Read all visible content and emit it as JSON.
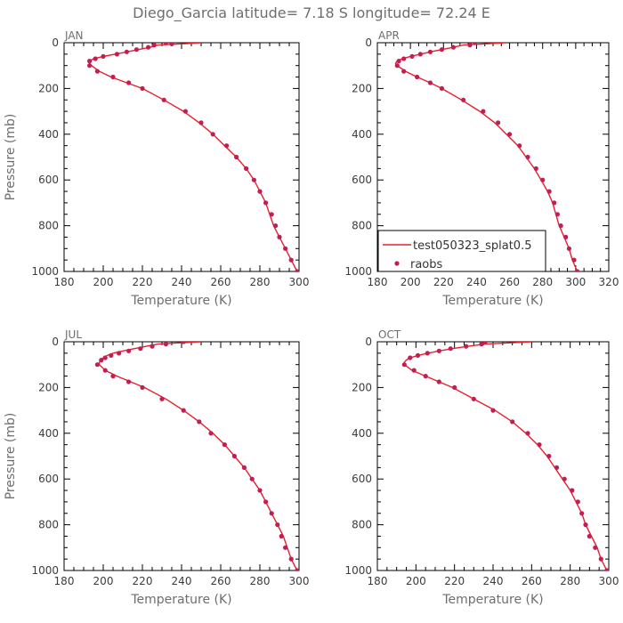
{
  "figure_title": "Diego_Garcia   latitude= 7.18 S longitude= 72.24 E",
  "legend": {
    "model_label": "test050323_splat0.5",
    "obs_label": "raobs",
    "model_color": "#e8202a",
    "obs_color": "#c21e54"
  },
  "chart_data": [
    {
      "type": "line",
      "title": "JAN",
      "xlabel": "Temperature (K)",
      "ylabel": "Pressure (mb)",
      "xlim": [
        180,
        300
      ],
      "ylim": [
        1000,
        0
      ],
      "xticks": [
        180,
        200,
        220,
        240,
        260,
        280,
        300
      ],
      "yticks": [
        0,
        200,
        400,
        600,
        800,
        1000
      ],
      "series": [
        {
          "name": "test050323_splat0.5",
          "points": [
            [
              250,
              0
            ],
            [
              240,
              5
            ],
            [
              228,
              10
            ],
            [
              224,
              20
            ],
            [
              218,
              30
            ],
            [
              212,
              40
            ],
            [
              206,
              50
            ],
            [
              200,
              60
            ],
            [
              195,
              70
            ],
            [
              193,
              80
            ],
            [
              193,
              90
            ],
            [
              194,
              100
            ],
            [
              198,
              125
            ],
            [
              204,
              150
            ],
            [
              212,
              175
            ],
            [
              220,
              200
            ],
            [
              231,
              250
            ],
            [
              241,
              300
            ],
            [
              249,
              350
            ],
            [
              256,
              400
            ],
            [
              262,
              450
            ],
            [
              268,
              500
            ],
            [
              273,
              550
            ],
            [
              277,
              600
            ],
            [
              280,
              650
            ],
            [
              283,
              700
            ],
            [
              285,
              750
            ],
            [
              287,
              800
            ],
            [
              290,
              850
            ],
            [
              293,
              900
            ],
            [
              296,
              950
            ],
            [
              299,
              1000
            ]
          ]
        },
        {
          "name": "raobs",
          "points": [
            [
              232,
              0
            ],
            [
              235,
              5
            ],
            [
              226,
              10
            ],
            [
              223,
              20
            ],
            [
              217,
              30
            ],
            [
              212,
              40
            ],
            [
              207,
              50
            ],
            [
              200,
              60
            ],
            [
              196,
              70
            ],
            [
              193,
              80
            ],
            [
              193,
              100
            ],
            [
              197,
              125
            ],
            [
              205,
              150
            ],
            [
              213,
              175
            ],
            [
              220,
              200
            ],
            [
              231,
              250
            ],
            [
              242,
              300
            ],
            [
              250,
              350
            ],
            [
              256,
              400
            ],
            [
              263,
              450
            ],
            [
              268,
              500
            ],
            [
              273,
              550
            ],
            [
              277,
              600
            ],
            [
              280,
              650
            ],
            [
              283,
              700
            ],
            [
              286,
              750
            ],
            [
              288,
              800
            ],
            [
              290,
              850
            ],
            [
              293,
              900
            ],
            [
              296,
              950
            ],
            [
              299,
              1000
            ]
          ]
        }
      ]
    },
    {
      "type": "line",
      "title": "APR",
      "xlabel": "Temperature (K)",
      "ylabel": "",
      "xlim": [
        180,
        320
      ],
      "ylim": [
        1000,
        0
      ],
      "xticks": [
        180,
        200,
        220,
        240,
        260,
        280,
        300,
        320
      ],
      "yticks": [
        0,
        200,
        400,
        600,
        800,
        1000
      ],
      "series": [
        {
          "name": "test050323_splat0.5",
          "points": [
            [
              257,
              0
            ],
            [
              245,
              5
            ],
            [
              232,
              10
            ],
            [
              226,
              20
            ],
            [
              219,
              30
            ],
            [
              212,
              40
            ],
            [
              206,
              50
            ],
            [
              200,
              60
            ],
            [
              195,
              70
            ],
            [
              192,
              80
            ],
            [
              191,
              90
            ],
            [
              192,
              100
            ],
            [
              197,
              125
            ],
            [
              204,
              150
            ],
            [
              212,
              175
            ],
            [
              219,
              200
            ],
            [
              231,
              250
            ],
            [
              242,
              300
            ],
            [
              251,
              350
            ],
            [
              258,
              400
            ],
            [
              265,
              450
            ],
            [
              270,
              500
            ],
            [
              275,
              550
            ],
            [
              279,
              600
            ],
            [
              283,
              650
            ],
            [
              286,
              700
            ],
            [
              288,
              750
            ],
            [
              290,
              800
            ],
            [
              293,
              850
            ],
            [
              296,
              900
            ],
            [
              298,
              950
            ],
            [
              301,
              1000
            ]
          ]
        },
        {
          "name": "raobs",
          "points": [
            [
              239,
              0
            ],
            [
              236,
              10
            ],
            [
              226,
              20
            ],
            [
              219,
              30
            ],
            [
              212,
              40
            ],
            [
              206,
              50
            ],
            [
              201,
              60
            ],
            [
              196,
              70
            ],
            [
              193,
              80
            ],
            [
              192,
              100
            ],
            [
              196,
              125
            ],
            [
              204,
              150
            ],
            [
              212,
              175
            ],
            [
              219,
              200
            ],
            [
              232,
              250
            ],
            [
              244,
              300
            ],
            [
              253,
              350
            ],
            [
              260,
              400
            ],
            [
              266,
              450
            ],
            [
              271,
              500
            ],
            [
              276,
              550
            ],
            [
              280,
              600
            ],
            [
              284,
              650
            ],
            [
              287,
              700
            ],
            [
              289,
              750
            ],
            [
              291,
              800
            ],
            [
              294,
              850
            ],
            [
              296,
              900
            ],
            [
              299,
              950
            ],
            [
              301,
              1000
            ]
          ]
        }
      ]
    },
    {
      "type": "line",
      "title": "JUL",
      "xlabel": "Temperature (K)",
      "ylabel": "Pressure (mb)",
      "xlim": [
        180,
        300
      ],
      "ylim": [
        1000,
        0
      ],
      "xticks": [
        180,
        200,
        220,
        240,
        260,
        280,
        300
      ],
      "yticks": [
        0,
        200,
        400,
        600,
        800,
        1000
      ],
      "series": [
        {
          "name": "test050323_splat0.5",
          "points": [
            [
              250,
              0
            ],
            [
              238,
              5
            ],
            [
              228,
              10
            ],
            [
              222,
              20
            ],
            [
              216,
              30
            ],
            [
              210,
              40
            ],
            [
              205,
              50
            ],
            [
              202,
              60
            ],
            [
              200,
              70
            ],
            [
              199,
              80
            ],
            [
              198,
              90
            ],
            [
              198,
              100
            ],
            [
              201,
              125
            ],
            [
              207,
              150
            ],
            [
              214,
              175
            ],
            [
              221,
              200
            ],
            [
              232,
              250
            ],
            [
              241,
              300
            ],
            [
              249,
              350
            ],
            [
              256,
              400
            ],
            [
              262,
              450
            ],
            [
              267,
              500
            ],
            [
              272,
              550
            ],
            [
              276,
              600
            ],
            [
              280,
              650
            ],
            [
              283,
              700
            ],
            [
              286,
              750
            ],
            [
              289,
              800
            ],
            [
              292,
              850
            ],
            [
              294,
              900
            ],
            [
              296,
              950
            ],
            [
              299,
              1000
            ]
          ]
        },
        {
          "name": "raobs",
          "points": [
            [
              241,
              0
            ],
            [
              232,
              10
            ],
            [
              225,
              20
            ],
            [
              219,
              30
            ],
            [
              213,
              40
            ],
            [
              208,
              50
            ],
            [
              204,
              60
            ],
            [
              201,
              70
            ],
            [
              199,
              80
            ],
            [
              197,
              100
            ],
            [
              201,
              125
            ],
            [
              205,
              150
            ],
            [
              213,
              175
            ],
            [
              220,
              200
            ],
            [
              230,
              250
            ],
            [
              241,
              300
            ],
            [
              249,
              350
            ],
            [
              255,
              400
            ],
            [
              262,
              450
            ],
            [
              267,
              500
            ],
            [
              272,
              550
            ],
            [
              276,
              600
            ],
            [
              280,
              650
            ],
            [
              283,
              700
            ],
            [
              286,
              750
            ],
            [
              289,
              800
            ],
            [
              291,
              850
            ],
            [
              293,
              900
            ],
            [
              296,
              950
            ],
            [
              299,
              1000
            ]
          ]
        }
      ]
    },
    {
      "type": "line",
      "title": "OCT",
      "xlabel": "Temperature (K)",
      "ylabel": "",
      "xlim": [
        180,
        300
      ],
      "ylim": [
        1000,
        0
      ],
      "xticks": [
        180,
        200,
        220,
        240,
        260,
        280,
        300
      ],
      "yticks": [
        0,
        200,
        400,
        600,
        800,
        1000
      ],
      "series": [
        {
          "name": "test050323_splat0.5",
          "points": [
            [
              260,
              0
            ],
            [
              248,
              5
            ],
            [
              236,
              10
            ],
            [
              227,
              20
            ],
            [
              219,
              30
            ],
            [
              212,
              40
            ],
            [
              206,
              50
            ],
            [
              201,
              60
            ],
            [
              197,
              70
            ],
            [
              195,
              80
            ],
            [
              194,
              90
            ],
            [
              194,
              100
            ],
            [
              198,
              125
            ],
            [
              205,
              150
            ],
            [
              212,
              175
            ],
            [
              219,
              200
            ],
            [
              230,
              250
            ],
            [
              241,
              300
            ],
            [
              250,
              350
            ],
            [
              257,
              400
            ],
            [
              263,
              450
            ],
            [
              268,
              500
            ],
            [
              272,
              550
            ],
            [
              276,
              600
            ],
            [
              280,
              650
            ],
            [
              283,
              700
            ],
            [
              286,
              750
            ],
            [
              288,
              800
            ],
            [
              291,
              850
            ],
            [
              294,
              900
            ],
            [
              296,
              950
            ],
            [
              299,
              1000
            ]
          ]
        },
        {
          "name": "raobs",
          "points": [
            [
              236,
              0
            ],
            [
              234,
              10
            ],
            [
              226,
              20
            ],
            [
              218,
              30
            ],
            [
              212,
              40
            ],
            [
              206,
              50
            ],
            [
              201,
              60
            ],
            [
              197,
              70
            ],
            [
              194,
              100
            ],
            [
              199,
              125
            ],
            [
              205,
              150
            ],
            [
              212,
              175
            ],
            [
              220,
              200
            ],
            [
              230,
              250
            ],
            [
              240,
              300
            ],
            [
              250,
              350
            ],
            [
              258,
              400
            ],
            [
              264,
              450
            ],
            [
              269,
              500
            ],
            [
              273,
              550
            ],
            [
              277,
              600
            ],
            [
              281,
              650
            ],
            [
              284,
              700
            ],
            [
              286,
              750
            ],
            [
              288,
              800
            ],
            [
              290,
              850
            ],
            [
              293,
              900
            ],
            [
              296,
              950
            ],
            [
              299,
              1000
            ]
          ]
        }
      ]
    }
  ]
}
